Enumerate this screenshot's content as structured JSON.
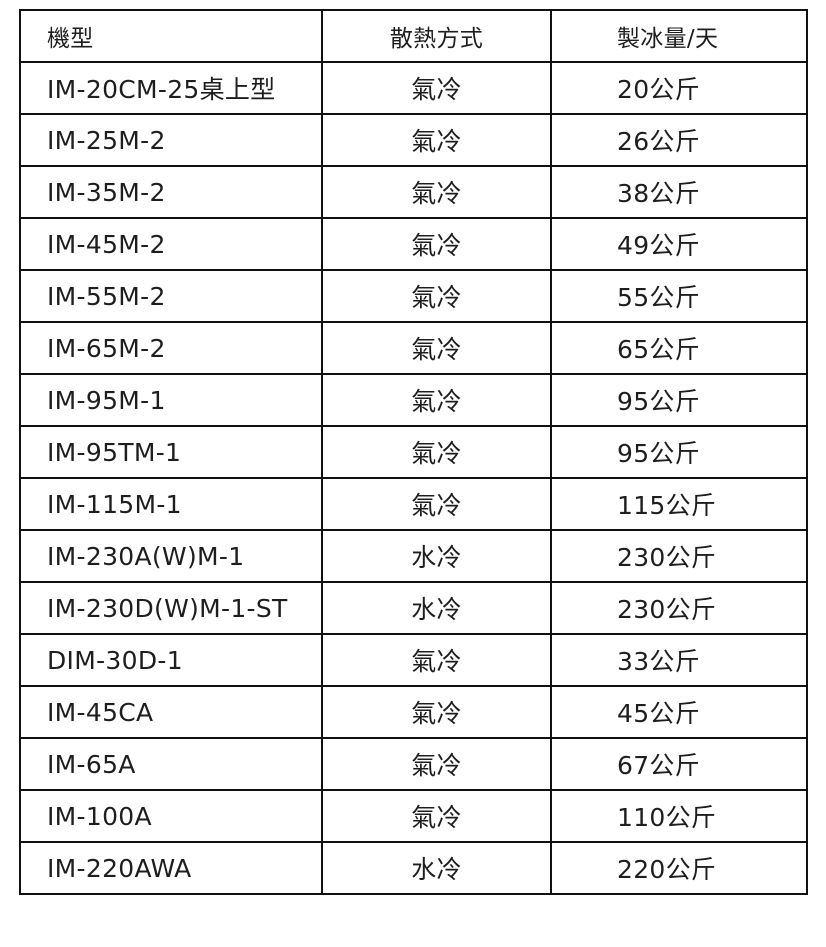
{
  "table": {
    "headers": [
      "機型",
      "散熱方式",
      "製冰量/天"
    ],
    "rows": [
      [
        "IM-20CM-25桌上型",
        "氣冷",
        "20公斤"
      ],
      [
        "IM-25M-2",
        "氣冷",
        "26公斤"
      ],
      [
        "IM-35M-2",
        "氣冷",
        "38公斤"
      ],
      [
        "IM-45M-2",
        "氣冷",
        "49公斤"
      ],
      [
        "IM-55M-2",
        "氣冷",
        "55公斤"
      ],
      [
        "IM-65M-2",
        "氣冷",
        "65公斤"
      ],
      [
        "IM-95M-1",
        "氣冷",
        "95公斤"
      ],
      [
        "IM-95TM-1",
        "氣冷",
        "95公斤"
      ],
      [
        "IM-115M-1",
        "氣冷",
        "115公斤"
      ],
      [
        "IM-230A(W)M-1",
        "水冷",
        "230公斤"
      ],
      [
        "IM-230D(W)M-1-ST",
        "水冷",
        "230公斤"
      ],
      [
        "DIM-30D-1",
        "氣冷",
        "33公斤"
      ],
      [
        "IM-45CA",
        "氣冷",
        "45公斤"
      ],
      [
        "IM-65A",
        "氣冷",
        "67公斤"
      ],
      [
        "IM-100A",
        "氣冷",
        "110公斤"
      ],
      [
        "IM-220AWA",
        "水冷",
        "220公斤"
      ]
    ]
  }
}
